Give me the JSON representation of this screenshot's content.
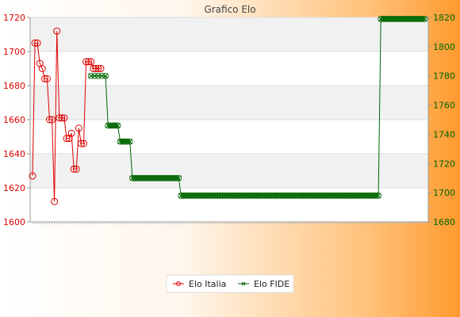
{
  "chart_data": {
    "type": "line",
    "title": "Grafico Elo",
    "grid": true,
    "legend_position": "bottom",
    "left_axis": {
      "min": 1600,
      "max": 1720,
      "ticks": [
        1600,
        1620,
        1640,
        1660,
        1680,
        1700,
        1720
      ],
      "color": "#dd0000"
    },
    "right_axis": {
      "min": 1680,
      "max": 1820,
      "ticks": [
        1680,
        1700,
        1720,
        1740,
        1760,
        1780,
        1800,
        1820
      ],
      "color": "#006600"
    },
    "series": [
      {
        "name": "Elo Italia",
        "axis": "left",
        "color": "#dd0000",
        "x": [
          0,
          2,
          4,
          6,
          8,
          10,
          12,
          14,
          16,
          18,
          20,
          22,
          24,
          26,
          28,
          30,
          32,
          34,
          36,
          38,
          40,
          42,
          44,
          46,
          48,
          50,
          52,
          54,
          56
        ],
        "values": [
          1627,
          1705,
          1705,
          1693,
          1690,
          1684,
          1684,
          1660,
          1660,
          1612,
          1712,
          1661,
          1661,
          1661,
          1649,
          1649,
          1652,
          1631,
          1631,
          1655,
          1646,
          1646,
          1694,
          1694,
          1694,
          1690,
          1690,
          1690,
          1690
        ]
      },
      {
        "name": "Elo FIDE",
        "axis": "right",
        "color": "#006600",
        "x": [
          48,
          51,
          54,
          57,
          60,
          62,
          64,
          66,
          68,
          70,
          72,
          74,
          76,
          78,
          80,
          82,
          84,
          86,
          88,
          90,
          92,
          94,
          96,
          98,
          100,
          102,
          104,
          106,
          108,
          110,
          112,
          114,
          116,
          118,
          120,
          122,
          124,
          126,
          128,
          130,
          132,
          134,
          136,
          138,
          140,
          142,
          144,
          146,
          148,
          150,
          152,
          154,
          156,
          158,
          160,
          162,
          164,
          166,
          168,
          170,
          172,
          174,
          176,
          178,
          180,
          182,
          184,
          186,
          188,
          190,
          192,
          194,
          196,
          198,
          200,
          202,
          204,
          206,
          208,
          210,
          212,
          214,
          216,
          218,
          220,
          222,
          224,
          226,
          228,
          230,
          232,
          234,
          236,
          238,
          240,
          242,
          244,
          246,
          248,
          250,
          252,
          254,
          256,
          258,
          260,
          262,
          264,
          266,
          268,
          270,
          272,
          274,
          276,
          278,
          280,
          282,
          284,
          286,
          288,
          290,
          292,
          294,
          296,
          298,
          300,
          302,
          304,
          306,
          308,
          310,
          312,
          314,
          316,
          318,
          320,
          322
        ],
        "values": [
          1780,
          1780,
          1780,
          1780,
          1780,
          1746,
          1746,
          1746,
          1746,
          1746,
          1735,
          1735,
          1735,
          1735,
          1735,
          1710,
          1710,
          1710,
          1710,
          1710,
          1710,
          1710,
          1710,
          1710,
          1710,
          1710,
          1710,
          1710,
          1710,
          1710,
          1710,
          1710,
          1710,
          1710,
          1710,
          1698,
          1698,
          1698,
          1698,
          1698,
          1698,
          1698,
          1698,
          1698,
          1698,
          1698,
          1698,
          1698,
          1698,
          1698,
          1698,
          1698,
          1698,
          1698,
          1698,
          1698,
          1698,
          1698,
          1698,
          1698,
          1698,
          1698,
          1698,
          1698,
          1698,
          1698,
          1698,
          1698,
          1698,
          1698,
          1698,
          1698,
          1698,
          1698,
          1698,
          1698,
          1698,
          1698,
          1698,
          1698,
          1698,
          1698,
          1698,
          1698,
          1698,
          1698,
          1698,
          1698,
          1698,
          1698,
          1698,
          1698,
          1698,
          1698,
          1698,
          1698,
          1698,
          1698,
          1698,
          1698,
          1698,
          1698,
          1698,
          1698,
          1698,
          1698,
          1698,
          1698,
          1698,
          1698,
          1698,
          1698,
          1698,
          1698,
          1698,
          1698,
          1698,
          1819,
          1819,
          1819,
          1819,
          1819,
          1819,
          1819,
          1819,
          1819,
          1819,
          1819,
          1819,
          1819,
          1819,
          1819,
          1819,
          1819,
          1819,
          1819
        ]
      }
    ]
  }
}
